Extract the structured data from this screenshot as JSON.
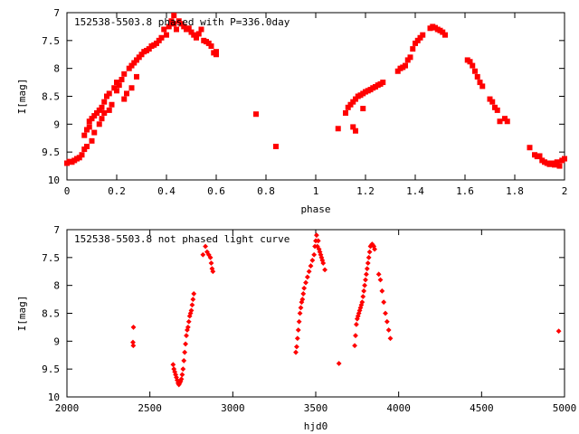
{
  "chart_data": [
    {
      "type": "scatter",
      "title": "152538-5503.8 phased with P=336.0day",
      "xlabel": "phase",
      "ylabel": "I[mag]",
      "xlim": [
        0,
        2
      ],
      "ylim": [
        10,
        7
      ],
      "y_inverted": true,
      "xticks": [
        "0",
        "0.2",
        "0.4",
        "0.6",
        "0.8",
        "1",
        "1.2",
        "1.4",
        "1.6",
        "1.8",
        "2"
      ],
      "xtick_values": [
        0,
        0.2,
        0.4,
        0.6,
        0.8,
        1.0,
        1.2,
        1.4,
        1.6,
        1.8,
        2.0
      ],
      "yticks": [
        "7",
        "7.5",
        "8",
        "8.5",
        "9",
        "9.5",
        "10"
      ],
      "ytick_values": [
        7,
        7.5,
        8,
        8.5,
        9,
        9.5,
        10
      ],
      "grid": false,
      "color": "#ff0000",
      "series": [
        {
          "points": [
            [
              0.0,
              9.7
            ],
            [
              0.01,
              9.67
            ],
            [
              0.02,
              9.68
            ],
            [
              0.03,
              9.65
            ],
            [
              0.04,
              9.62
            ],
            [
              0.05,
              9.6
            ],
            [
              0.06,
              9.55
            ],
            [
              0.07,
              9.45
            ],
            [
              0.07,
              9.2
            ],
            [
              0.08,
              9.4
            ],
            [
              0.08,
              9.1
            ],
            [
              0.09,
              9.05
            ],
            [
              0.09,
              8.95
            ],
            [
              0.1,
              9.3
            ],
            [
              0.1,
              8.9
            ],
            [
              0.11,
              9.15
            ],
            [
              0.11,
              8.85
            ],
            [
              0.12,
              8.8
            ],
            [
              0.13,
              9.0
            ],
            [
              0.13,
              8.75
            ],
            [
              0.14,
              8.9
            ],
            [
              0.14,
              8.7
            ],
            [
              0.15,
              8.8
            ],
            [
              0.15,
              8.6
            ],
            [
              0.16,
              8.5
            ],
            [
              0.17,
              8.75
            ],
            [
              0.17,
              8.45
            ],
            [
              0.18,
              8.65
            ],
            [
              0.19,
              8.35
            ],
            [
              0.2,
              8.4
            ],
            [
              0.2,
              8.25
            ],
            [
              0.21,
              8.3
            ],
            [
              0.22,
              8.2
            ],
            [
              0.23,
              8.55
            ],
            [
              0.23,
              8.1
            ],
            [
              0.24,
              8.45
            ],
            [
              0.25,
              8.0
            ],
            [
              0.26,
              8.35
            ],
            [
              0.26,
              7.95
            ],
            [
              0.27,
              7.9
            ],
            [
              0.28,
              8.15
            ],
            [
              0.28,
              7.85
            ],
            [
              0.29,
              7.8
            ],
            [
              0.3,
              7.75
            ],
            [
              0.31,
              7.7
            ],
            [
              0.32,
              7.68
            ],
            [
              0.33,
              7.65
            ],
            [
              0.34,
              7.6
            ],
            [
              0.35,
              7.58
            ],
            [
              0.36,
              7.55
            ],
            [
              0.37,
              7.5
            ],
            [
              0.38,
              7.45
            ],
            [
              0.39,
              7.3
            ],
            [
              0.4,
              7.4
            ],
            [
              0.41,
              7.25
            ],
            [
              0.42,
              7.15
            ],
            [
              0.43,
              7.2
            ],
            [
              0.43,
              7.05
            ],
            [
              0.44,
              7.3
            ],
            [
              0.45,
              7.15
            ],
            [
              0.46,
              7.2
            ],
            [
              0.47,
              7.25
            ],
            [
              0.48,
              7.3
            ],
            [
              0.49,
              7.28
            ],
            [
              0.5,
              7.35
            ],
            [
              0.51,
              7.4
            ],
            [
              0.52,
              7.45
            ],
            [
              0.53,
              7.38
            ],
            [
              0.54,
              7.3
            ],
            [
              0.55,
              7.5
            ],
            [
              0.56,
              7.52
            ],
            [
              0.57,
              7.55
            ],
            [
              0.58,
              7.6
            ],
            [
              0.59,
              7.72
            ],
            [
              0.6,
              7.7
            ],
            [
              0.6,
              7.75
            ],
            [
              0.76,
              8.82
            ],
            [
              0.84,
              9.4
            ],
            [
              1.09,
              9.08
            ],
            [
              1.12,
              8.8
            ],
            [
              1.13,
              8.7
            ],
            [
              1.14,
              8.65
            ],
            [
              1.15,
              9.05
            ],
            [
              1.15,
              8.6
            ],
            [
              1.16,
              9.12
            ],
            [
              1.16,
              8.55
            ],
            [
              1.17,
              8.5
            ],
            [
              1.18,
              8.48
            ],
            [
              1.19,
              8.72
            ],
            [
              1.19,
              8.45
            ],
            [
              1.2,
              8.42
            ],
            [
              1.21,
              8.4
            ],
            [
              1.22,
              8.38
            ],
            [
              1.23,
              8.35
            ],
            [
              1.24,
              8.33
            ],
            [
              1.25,
              8.3
            ],
            [
              1.26,
              8.28
            ],
            [
              1.27,
              8.25
            ],
            [
              1.33,
              8.05
            ],
            [
              1.34,
              8.0
            ],
            [
              1.35,
              7.98
            ],
            [
              1.36,
              7.95
            ],
            [
              1.37,
              7.85
            ],
            [
              1.38,
              7.8
            ],
            [
              1.39,
              7.65
            ],
            [
              1.4,
              7.55
            ],
            [
              1.41,
              7.5
            ],
            [
              1.42,
              7.45
            ],
            [
              1.43,
              7.4
            ],
            [
              1.46,
              7.28
            ],
            [
              1.47,
              7.25
            ],
            [
              1.48,
              7.27
            ],
            [
              1.49,
              7.3
            ],
            [
              1.5,
              7.32
            ],
            [
              1.51,
              7.35
            ],
            [
              1.52,
              7.4
            ],
            [
              1.61,
              7.85
            ],
            [
              1.62,
              7.88
            ],
            [
              1.63,
              7.95
            ],
            [
              1.64,
              8.05
            ],
            [
              1.65,
              8.15
            ],
            [
              1.66,
              8.25
            ],
            [
              1.67,
              8.32
            ],
            [
              1.7,
              8.55
            ],
            [
              1.71,
              8.6
            ],
            [
              1.72,
              8.7
            ],
            [
              1.73,
              8.75
            ],
            [
              1.74,
              8.95
            ],
            [
              1.76,
              8.9
            ],
            [
              1.77,
              8.95
            ],
            [
              1.86,
              9.42
            ],
            [
              1.88,
              9.55
            ],
            [
              1.89,
              9.58
            ],
            [
              1.9,
              9.57
            ],
            [
              1.91,
              9.65
            ],
            [
              1.92,
              9.68
            ],
            [
              1.93,
              9.7
            ],
            [
              1.94,
              9.72
            ],
            [
              1.95,
              9.7
            ],
            [
              1.96,
              9.73
            ],
            [
              1.97,
              9.68
            ],
            [
              1.98,
              9.75
            ],
            [
              1.99,
              9.65
            ],
            [
              2.0,
              9.62
            ]
          ]
        }
      ]
    },
    {
      "type": "scatter",
      "title": "152538-5503.8 not phased light curve",
      "xlabel": "hjd0",
      "ylabel": "I[mag]",
      "xlim": [
        2000,
        5000
      ],
      "ylim": [
        10,
        7
      ],
      "y_inverted": true,
      "xticks": [
        "2000",
        "2500",
        "3000",
        "3500",
        "4000",
        "4500",
        "5000"
      ],
      "xtick_values": [
        2000,
        2500,
        3000,
        3500,
        4000,
        4500,
        5000
      ],
      "yticks": [
        "7",
        "7.5",
        "8",
        "8.5",
        "9",
        "9.5",
        "10"
      ],
      "ytick_values": [
        7,
        7.5,
        8,
        8.5,
        9,
        9.5,
        10
      ],
      "grid": false,
      "color": "#ff0000",
      "series": [
        {
          "points": [
            [
              2398,
              9.02
            ],
            [
              2400,
              9.08
            ],
            [
              2401,
              8.75
            ],
            [
              2640,
              9.42
            ],
            [
              2645,
              9.5
            ],
            [
              2650,
              9.55
            ],
            [
              2655,
              9.6
            ],
            [
              2660,
              9.65
            ],
            [
              2665,
              9.7
            ],
            [
              2670,
              9.75
            ],
            [
              2675,
              9.78
            ],
            [
              2680,
              9.75
            ],
            [
              2685,
              9.72
            ],
            [
              2690,
              9.68
            ],
            [
              2695,
              9.6
            ],
            [
              2700,
              9.5
            ],
            [
              2705,
              9.35
            ],
            [
              2710,
              9.2
            ],
            [
              2715,
              9.05
            ],
            [
              2720,
              8.9
            ],
            [
              2725,
              8.8
            ],
            [
              2730,
              8.75
            ],
            [
              2735,
              8.65
            ],
            [
              2740,
              8.55
            ],
            [
              2745,
              8.5
            ],
            [
              2750,
              8.45
            ],
            [
              2755,
              8.35
            ],
            [
              2760,
              8.25
            ],
            [
              2765,
              8.15
            ],
            [
              2820,
              7.45
            ],
            [
              2835,
              7.3
            ],
            [
              2845,
              7.4
            ],
            [
              2855,
              7.45
            ],
            [
              2865,
              7.5
            ],
            [
              2870,
              7.6
            ],
            [
              2875,
              7.7
            ],
            [
              2880,
              7.75
            ],
            [
              3380,
              9.2
            ],
            [
              3385,
              9.1
            ],
            [
              3390,
              8.95
            ],
            [
              3395,
              8.8
            ],
            [
              3400,
              8.65
            ],
            [
              3405,
              8.5
            ],
            [
              3410,
              8.4
            ],
            [
              3415,
              8.3
            ],
            [
              3420,
              8.25
            ],
            [
              3425,
              8.15
            ],
            [
              3430,
              8.05
            ],
            [
              3440,
              7.95
            ],
            [
              3450,
              7.85
            ],
            [
              3460,
              7.75
            ],
            [
              3470,
              7.65
            ],
            [
              3480,
              7.55
            ],
            [
              3490,
              7.45
            ],
            [
              3495,
              7.3
            ],
            [
              3500,
              7.2
            ],
            [
              3505,
              7.1
            ],
            [
              3510,
              7.3
            ],
            [
              3515,
              7.2
            ],
            [
              3520,
              7.35
            ],
            [
              3525,
              7.4
            ],
            [
              3530,
              7.45
            ],
            [
              3535,
              7.5
            ],
            [
              3540,
              7.55
            ],
            [
              3545,
              7.6
            ],
            [
              3555,
              7.72
            ],
            [
              3640,
              9.4
            ],
            [
              3735,
              9.08
            ],
            [
              3740,
              8.9
            ],
            [
              3745,
              8.7
            ],
            [
              3750,
              8.6
            ],
            [
              3755,
              8.55
            ],
            [
              3760,
              8.5
            ],
            [
              3765,
              8.45
            ],
            [
              3770,
              8.4
            ],
            [
              3775,
              8.35
            ],
            [
              3780,
              8.3
            ],
            [
              3785,
              8.2
            ],
            [
              3790,
              8.1
            ],
            [
              3795,
              8.0
            ],
            [
              3800,
              7.9
            ],
            [
              3805,
              7.8
            ],
            [
              3810,
              7.7
            ],
            [
              3815,
              7.6
            ],
            [
              3820,
              7.5
            ],
            [
              3825,
              7.4
            ],
            [
              3830,
              7.3
            ],
            [
              3835,
              7.28
            ],
            [
              3840,
              7.26
            ],
            [
              3845,
              7.28
            ],
            [
              3850,
              7.3
            ],
            [
              3855,
              7.35
            ],
            [
              3880,
              7.8
            ],
            [
              3890,
              7.9
            ],
            [
              3900,
              8.1
            ],
            [
              3910,
              8.3
            ],
            [
              3920,
              8.5
            ],
            [
              3930,
              8.65
            ],
            [
              3940,
              8.8
            ],
            [
              3950,
              8.95
            ],
            [
              4965,
              8.82
            ]
          ]
        }
      ]
    }
  ]
}
